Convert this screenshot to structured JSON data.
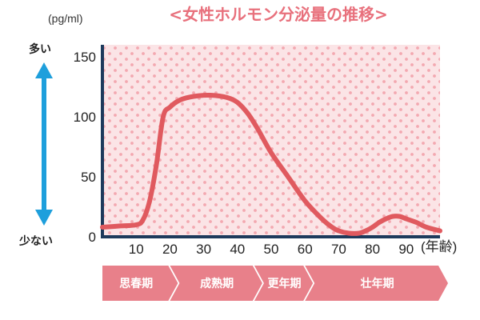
{
  "title": "<女性ホルモン分泌量の推移>",
  "chart_data": {
    "type": "line",
    "unit": "(pg/ml)",
    "xunit": "(年齢)",
    "x_ticks": [
      "10",
      "20",
      "30",
      "40",
      "50",
      "60",
      "70",
      "80",
      "90"
    ],
    "y_ticks": [
      "0",
      "50",
      "100",
      "150"
    ],
    "xlim": [
      0,
      100
    ],
    "ylim": [
      0,
      160
    ],
    "grid": false,
    "scale_labels": {
      "high": "多い",
      "low": "少ない"
    },
    "series": [
      {
        "x": [
          0,
          5,
          10,
          12,
          14,
          16,
          18,
          20,
          23,
          27,
          32,
          37,
          40,
          43,
          46,
          50,
          55,
          60,
          65,
          68,
          70,
          73,
          76,
          78,
          80,
          82,
          84,
          86,
          88,
          90,
          93,
          96,
          100
        ],
        "y": [
          8,
          9,
          10,
          14,
          30,
          60,
          100,
          108,
          114,
          117,
          118,
          116,
          112,
          103,
          90,
          70,
          50,
          30,
          15,
          8,
          5,
          3,
          3,
          5,
          8,
          12,
          15,
          17,
          17,
          15,
          12,
          8,
          5
        ]
      }
    ],
    "colors": {
      "line": "#e05a5f",
      "background": "#fbe4e6",
      "dots": "#f3a8b0",
      "axis": "#1d3a5c",
      "arrow": "#1e9fdc",
      "stage": "#e8808a"
    }
  },
  "stages": [
    {
      "label": "思春期",
      "from": 0,
      "to": 20
    },
    {
      "label": "成熟期",
      "from": 20,
      "to": 45
    },
    {
      "label": "更年期",
      "from": 45,
      "to": 60
    },
    {
      "label": "壮年期",
      "from": 60,
      "to": 100
    }
  ]
}
